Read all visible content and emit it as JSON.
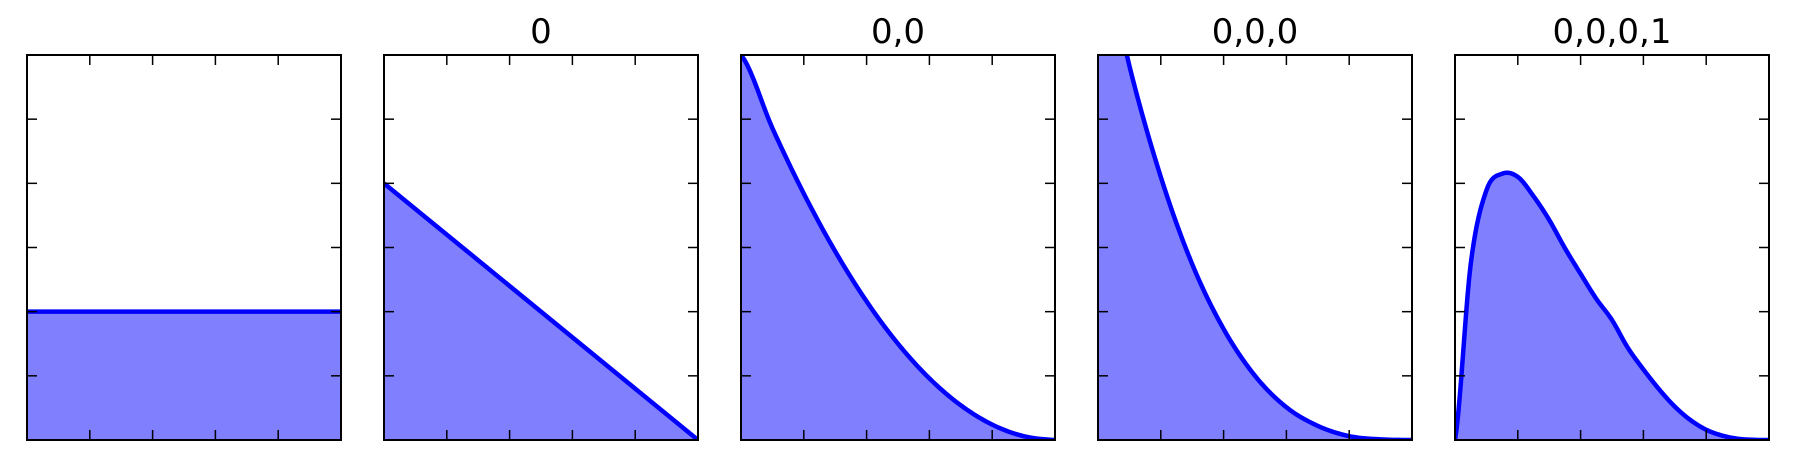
{
  "chart_data": [
    {
      "type": "area",
      "title": "",
      "xlim": [
        0,
        1
      ],
      "ylim": [
        0,
        6
      ],
      "x": [
        0,
        1
      ],
      "series": [
        {
          "values": [
            2,
            2
          ]
        }
      ],
      "grid": false
    },
    {
      "type": "area",
      "title": "0",
      "xlim": [
        0,
        1
      ],
      "ylim": [
        0,
        6
      ],
      "x": [
        0,
        1
      ],
      "series": [
        {
          "values": [
            4,
            0
          ]
        }
      ],
      "grid": false
    },
    {
      "type": "area",
      "title": "0,0",
      "xlim": [
        0,
        1
      ],
      "ylim": [
        0,
        6
      ],
      "x": [
        0,
        0.1,
        0.2,
        0.3,
        0.4,
        0.5,
        0.6,
        0.7,
        0.8,
        0.9,
        1.0
      ],
      "series": [
        {
          "values": [
            6.0,
            4.86,
            3.84,
            2.94,
            2.16,
            1.5,
            0.96,
            0.54,
            0.24,
            0.06,
            0.0
          ]
        }
      ],
      "grid": false
    },
    {
      "type": "area",
      "title": "0,0,0",
      "xlim": [
        0,
        1
      ],
      "ylim": [
        0,
        6
      ],
      "x": [
        0,
        0.1,
        0.2,
        0.3,
        0.4,
        0.5,
        0.6,
        0.7,
        0.8,
        0.9,
        1.0
      ],
      "series": [
        {
          "values": [
            8.0,
            5.83,
            4.1,
            2.74,
            1.73,
            1.0,
            0.51,
            0.22,
            0.06,
            0.01,
            0.0
          ]
        }
      ],
      "grid": false
    },
    {
      "type": "area",
      "title": "0,0,0,1",
      "xlim": [
        0,
        1
      ],
      "ylim": [
        0,
        6
      ],
      "x": [
        0,
        0.05,
        0.1,
        0.15,
        0.2,
        0.25,
        0.3,
        0.35,
        0.4,
        0.45,
        0.5,
        0.55,
        0.6,
        0.65,
        0.7,
        0.75,
        0.8,
        0.85,
        0.9,
        0.95,
        1.0
      ],
      "series": [
        {
          "values": [
            0.0,
            2.74,
            3.89,
            4.15,
            4.1,
            3.8,
            3.43,
            2.99,
            2.59,
            2.2,
            1.87,
            1.44,
            1.1,
            0.79,
            0.52,
            0.31,
            0.16,
            0.07,
            0.02,
            0.003,
            0.0
          ]
        }
      ],
      "grid": false
    }
  ],
  "style": {
    "line_color": "#0000ff",
    "fill_color": "#8080ff",
    "axes_color": "#000000"
  }
}
